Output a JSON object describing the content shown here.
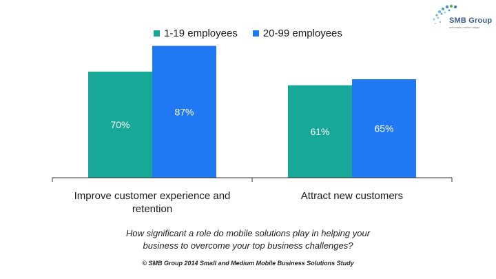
{
  "logo": {
    "text": "SMB Group",
    "tagline": "actionable market insight"
  },
  "question": {
    "line1": "How significant a role do mobile solutions play in helping your",
    "line2": "business to overcome your top business challenges?"
  },
  "footnote": "© SMB Group 2014 Small and Medium Mobile Business Solutions Study",
  "colors": {
    "series1": "#17a898",
    "series2": "#2079f2",
    "axis": "#333333"
  },
  "chart_data": {
    "type": "bar",
    "categories": [
      [
        "Improve customer experience and",
        "retention"
      ],
      [
        "Attract new customers"
      ]
    ],
    "series": [
      {
        "name": "1-19 employees",
        "values": [
          70,
          61
        ],
        "labels": [
          "70%",
          "61%"
        ]
      },
      {
        "name": "20-99 employees",
        "values": [
          87,
          65
        ],
        "labels": [
          "87%",
          "65%"
        ]
      }
    ],
    "ylim": [
      0,
      100
    ],
    "legend": "top",
    "grid": false,
    "title": "",
    "xlabel": "",
    "ylabel": ""
  }
}
